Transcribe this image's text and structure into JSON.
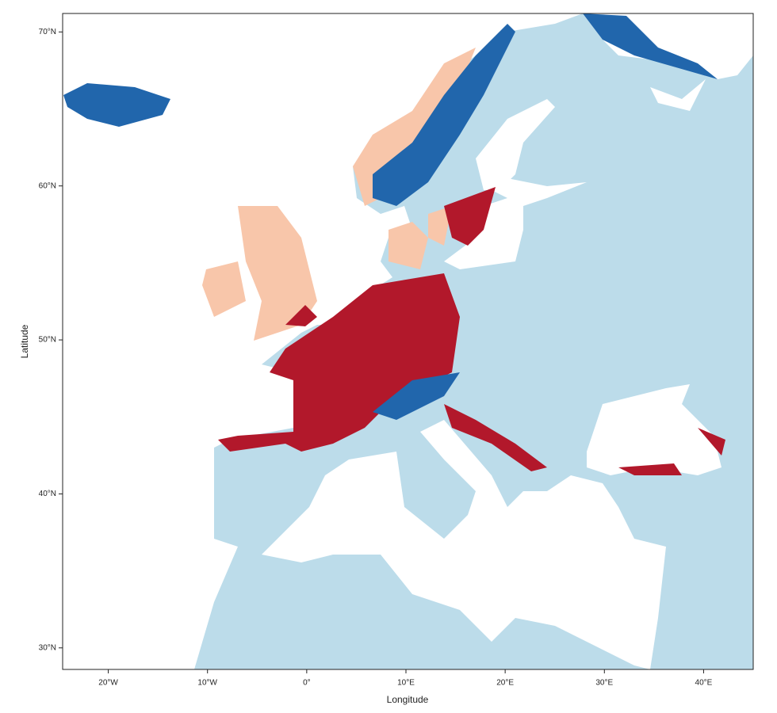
{
  "map": {
    "x_axis": {
      "title": "Longitude",
      "lim": [
        -24.6,
        45
      ],
      "ticks": [
        {
          "value": -20,
          "label": "20°W"
        },
        {
          "value": -10,
          "label": "10°W"
        },
        {
          "value": 0,
          "label": "0°"
        },
        {
          "value": 10,
          "label": "10°E"
        },
        {
          "value": 20,
          "label": "20°E"
        },
        {
          "value": 30,
          "label": "30°E"
        },
        {
          "value": 40,
          "label": "40°E"
        }
      ]
    },
    "y_axis": {
      "title": "Latitude",
      "lim": [
        28.6,
        71.2
      ],
      "ticks": [
        {
          "value": 30,
          "label": "30°N"
        },
        {
          "value": 40,
          "label": "40°N"
        },
        {
          "value": 50,
          "label": "50°N"
        },
        {
          "value": 60,
          "label": "60°N"
        },
        {
          "value": 70,
          "label": "70°N"
        }
      ]
    }
  }
}
